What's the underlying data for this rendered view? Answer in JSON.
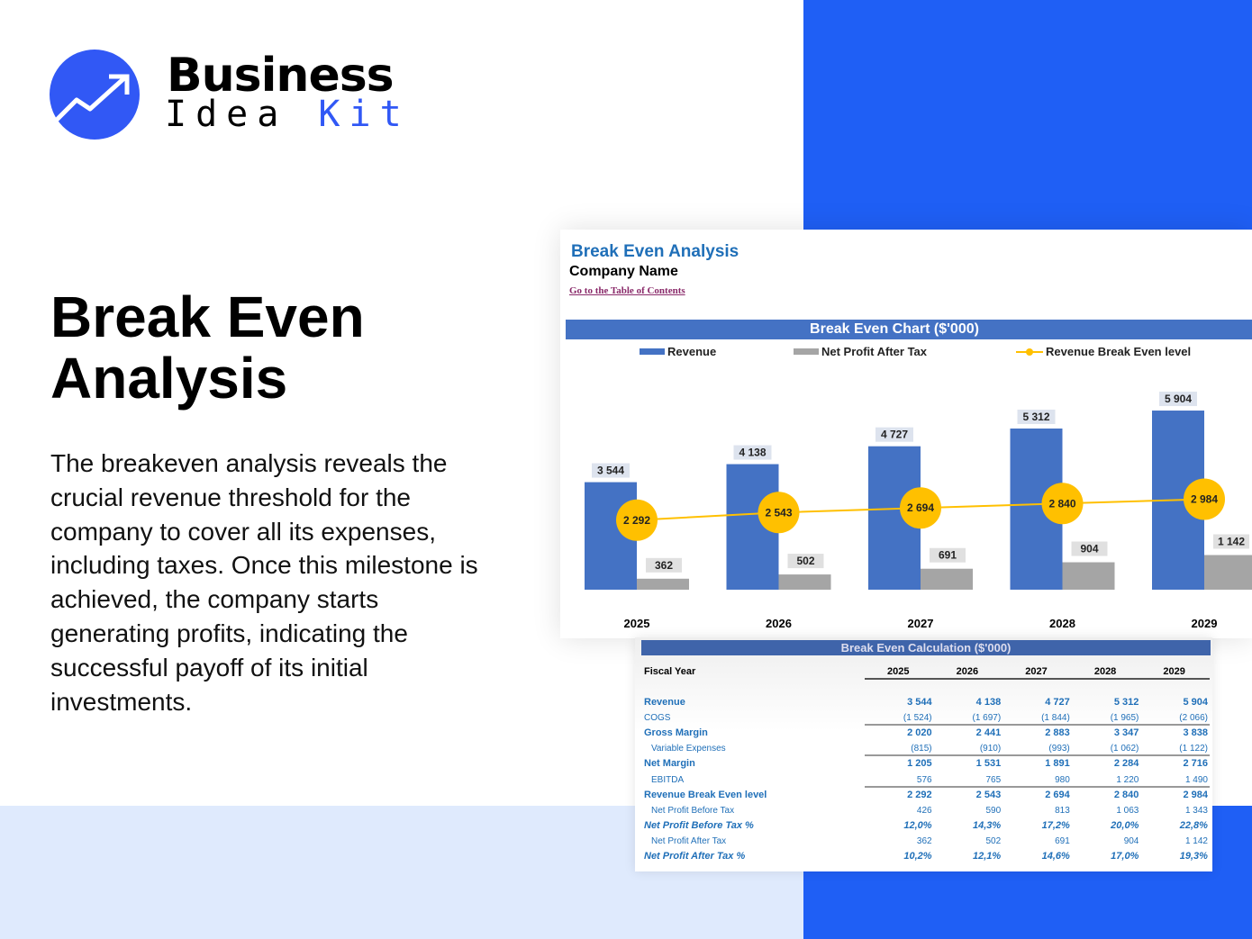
{
  "brand": {
    "line1": "Business",
    "line2a": "Idea",
    "line2b": "Kit",
    "color": "#3158f5"
  },
  "headline": {
    "title_line1": "Break Even",
    "title_line2": "Analysis",
    "description": "The breakeven analysis reveals the crucial revenue threshold for the company to cover all its expenses, including taxes. Once this milestone is achieved, the company starts generating profits, indicating the successful payoff of its initial investments."
  },
  "sheet": {
    "title": "Break Even Analysis",
    "company": "Company Name",
    "toc_link": "Go to the Table of Contents"
  },
  "chart_data": {
    "type": "bar",
    "title": "Break Even Chart ($'000)",
    "categories": [
      "2025",
      "2026",
      "2027",
      "2028",
      "2029"
    ],
    "series": [
      {
        "name": "Revenue",
        "kind": "bar",
        "color": "#4472c4",
        "values": [
          3544,
          4138,
          4727,
          5312,
          5904
        ],
        "labels": [
          "3 544",
          "4 138",
          "4 727",
          "5 312",
          "5 904"
        ]
      },
      {
        "name": "Net Profit After Tax",
        "kind": "bar",
        "color": "#a5a5a5",
        "values": [
          362,
          502,
          691,
          904,
          1142
        ],
        "labels": [
          "362",
          "502",
          "691",
          "904",
          "1 142"
        ]
      },
      {
        "name": "Revenue Break Even level",
        "kind": "line",
        "color": "#ffc000",
        "values": [
          2292,
          2543,
          2694,
          2840,
          2984
        ],
        "labels": [
          "2 292",
          "2 543",
          "2 694",
          "2 840",
          "2 984"
        ]
      }
    ],
    "legend": "top",
    "grid": false,
    "ylim": [
      0,
      6500
    ]
  },
  "table": {
    "title": "Break Even Calculation ($'000)",
    "header": {
      "label": "Fiscal Year",
      "years": [
        "2025",
        "2026",
        "2027",
        "2028",
        "2029"
      ]
    },
    "rows": [
      {
        "label": "Revenue",
        "style": "b",
        "values": [
          "3 544",
          "4 138",
          "4 727",
          "5 312",
          "5 904"
        ]
      },
      {
        "label": "COGS",
        "style": "n ul",
        "values": [
          "(1 524)",
          "(1 697)",
          "(1 844)",
          "(1 965)",
          "(2 066)"
        ]
      },
      {
        "label": "Gross Margin",
        "style": "b",
        "values": [
          "2 020",
          "2 441",
          "2 883",
          "3 347",
          "3 838"
        ]
      },
      {
        "label": "Variable Expenses",
        "style": "n sub ul",
        "values": [
          "(815)",
          "(910)",
          "(993)",
          "(1 062)",
          "(1 122)"
        ]
      },
      {
        "label": "Net Margin",
        "style": "b",
        "values": [
          "1 205",
          "1 531",
          "1 891",
          "2 284",
          "2 716"
        ]
      },
      {
        "label": "EBITDA",
        "style": "n sub ul",
        "values": [
          "576",
          "765",
          "980",
          "1 220",
          "1 490"
        ]
      },
      {
        "label": "Revenue Break Even level",
        "style": "b",
        "values": [
          "2 292",
          "2 543",
          "2 694",
          "2 840",
          "2 984"
        ]
      },
      {
        "label": "Net Profit Before Tax",
        "style": "n sub",
        "values": [
          "426",
          "590",
          "813",
          "1 063",
          "1 343"
        ]
      },
      {
        "label": "Net Profit Before Tax %",
        "style": "i",
        "values": [
          "12,0%",
          "14,3%",
          "17,2%",
          "20,0%",
          "22,8%"
        ]
      },
      {
        "label": "Net Profit After Tax",
        "style": "n sub",
        "values": [
          "362",
          "502",
          "691",
          "904",
          "1 142"
        ]
      },
      {
        "label": "Net Profit After Tax %",
        "style": "i",
        "values": [
          "10,2%",
          "12,1%",
          "14,6%",
          "17,0%",
          "19,3%"
        ]
      }
    ]
  }
}
